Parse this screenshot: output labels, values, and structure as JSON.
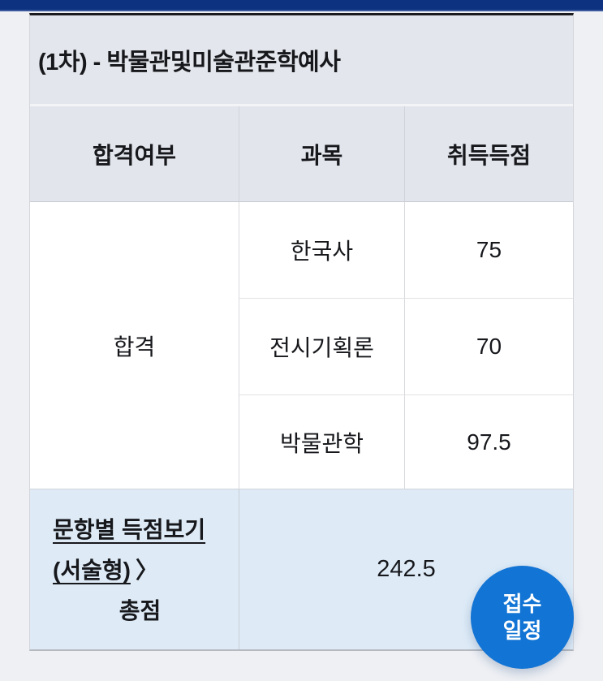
{
  "page": {
    "background": "#eef0f4",
    "topbar_color": "#0d3380"
  },
  "result": {
    "title": "(1차) - 박물관및미술관준학예사",
    "columns": [
      "합격여부",
      "과목",
      "취득득점"
    ],
    "pass_status": "합격",
    "subjects": [
      {
        "name": "한국사",
        "score": "75"
      },
      {
        "name": "전시기획론",
        "score": "70"
      },
      {
        "name": "박물관학",
        "score": "97.5"
      }
    ],
    "detail_link": {
      "label": "문항별 득점보기(서술형)",
      "chevron": "〉"
    },
    "total_label": "총점",
    "total_score": "242.5"
  },
  "floating_button": {
    "label_line1": "접수",
    "label_line2": "일정",
    "color": "#1274d4"
  }
}
